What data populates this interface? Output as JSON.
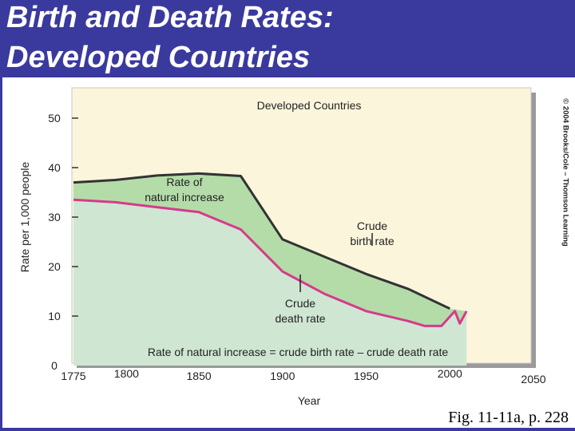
{
  "slide": {
    "title_line_1": "Birth and Death Rates:",
    "title_line_2": "Developed Countries",
    "caption": "Fig. 11-11a, p. 228",
    "credit": "© 2004 Brooks/Cole – Thomson Learning",
    "colors": {
      "title_band": "#3a3a9e",
      "plot_background": "#fbf5dc",
      "natural_increase_fill": "#b4dca8",
      "below_death_rate_fill": "#cfe6d3",
      "birth_rate_line": "#333333",
      "death_rate_line": "#d63a8c"
    }
  },
  "chart_data": {
    "type": "area",
    "title": "Developed Countries",
    "xlabel": "Year",
    "ylabel": "Rate per 1,000 people",
    "xlim": [
      1775,
      2050
    ],
    "ylim": [
      0,
      50
    ],
    "x_ticks": [
      "1775",
      "1800",
      "1850",
      "1900",
      "1950",
      "2000",
      "2050"
    ],
    "y_ticks": [
      "0",
      "10",
      "20",
      "30",
      "40",
      "50"
    ],
    "grid": false,
    "series": [
      {
        "name": "Crude birth rate",
        "points": [
          [
            1775,
            37
          ],
          [
            1800,
            37.5
          ],
          [
            1825,
            38.4
          ],
          [
            1850,
            38.8
          ],
          [
            1875,
            38.3
          ],
          [
            1900,
            25.5
          ],
          [
            1925,
            22
          ],
          [
            1950,
            18.5
          ],
          [
            1975,
            15.5
          ],
          [
            2000,
            11.5
          ]
        ]
      },
      {
        "name": "Crude death rate",
        "points": [
          [
            1775,
            33.5
          ],
          [
            1800,
            33
          ],
          [
            1825,
            32
          ],
          [
            1850,
            31
          ],
          [
            1875,
            27.5
          ],
          [
            1900,
            19
          ],
          [
            1925,
            14.5
          ],
          [
            1950,
            11
          ],
          [
            1975,
            9
          ],
          [
            1985,
            8
          ],
          [
            1995,
            8
          ],
          [
            2003,
            11
          ],
          [
            2006,
            8.5
          ],
          [
            2010,
            11
          ]
        ]
      }
    ],
    "annotations": {
      "natural_increase": "Rate of\nnatural increase",
      "birth_rate": "Crude\nbirth rate",
      "death_rate": "Crude\ndeath rate",
      "formula": "Rate of natural increase = crude birth rate – crude death rate"
    }
  }
}
